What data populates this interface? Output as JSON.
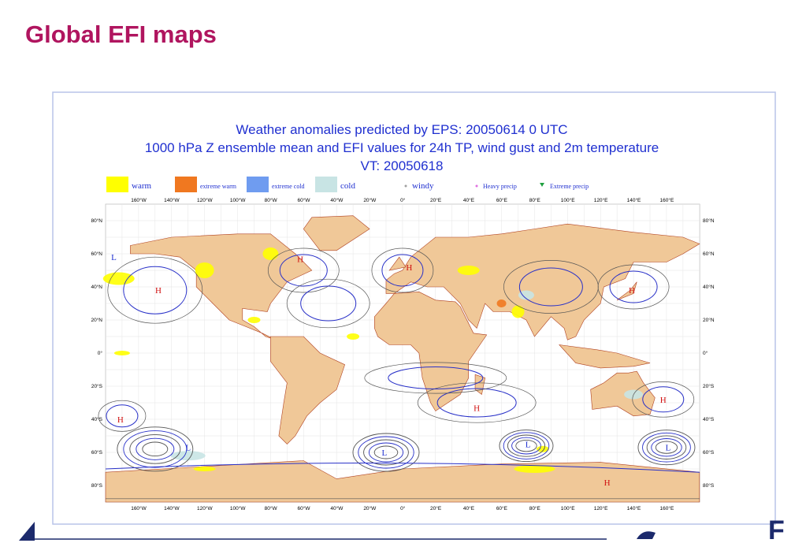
{
  "header": {
    "title": "Global EFI maps"
  },
  "figure": {
    "title_lines": [
      "Weather anomalies predicted by EPS: 20050614 0 UTC",
      "1000 hPa Z ensemble mean and EFI values for 24h TP, wind gust and 2m temperature",
      "VT: 20050618"
    ],
    "legend": [
      {
        "label": "warm",
        "color": "#ffff00",
        "kind": "box"
      },
      {
        "label": "extreme warm",
        "color": "#f07820",
        "kind": "box"
      },
      {
        "label": "extreme cold",
        "color": "#6f9cf0",
        "kind": "box"
      },
      {
        "label": "cold",
        "color": "#c8e4e4",
        "kind": "box"
      },
      {
        "label": "windy",
        "color": "#a0a0a0",
        "kind": "dot"
      },
      {
        "label": "Heavy precip",
        "color": "#e070e0",
        "kind": "dot"
      },
      {
        "label": "Extreme precip",
        "color": "#20a040",
        "kind": "tri"
      }
    ],
    "lon_labels": [
      "160°W",
      "140°W",
      "120°W",
      "100°W",
      "80°W",
      "60°W",
      "40°W",
      "20°W",
      "0°",
      "20°E",
      "40°E",
      "60°E",
      "80°E",
      "100°E",
      "120°E",
      "140°E",
      "160°E"
    ],
    "lat_labels": [
      "80°N",
      "60°N",
      "40°N",
      "20°N",
      "0°",
      "20°S",
      "40°S",
      "60°S",
      "80°S"
    ],
    "pressure_centers": [
      "L",
      "H",
      "H",
      "H",
      "H",
      "H",
      "H",
      "H",
      "L",
      "L",
      "L",
      "L",
      "H"
    ]
  },
  "footer": {
    "logo_text": "F"
  }
}
